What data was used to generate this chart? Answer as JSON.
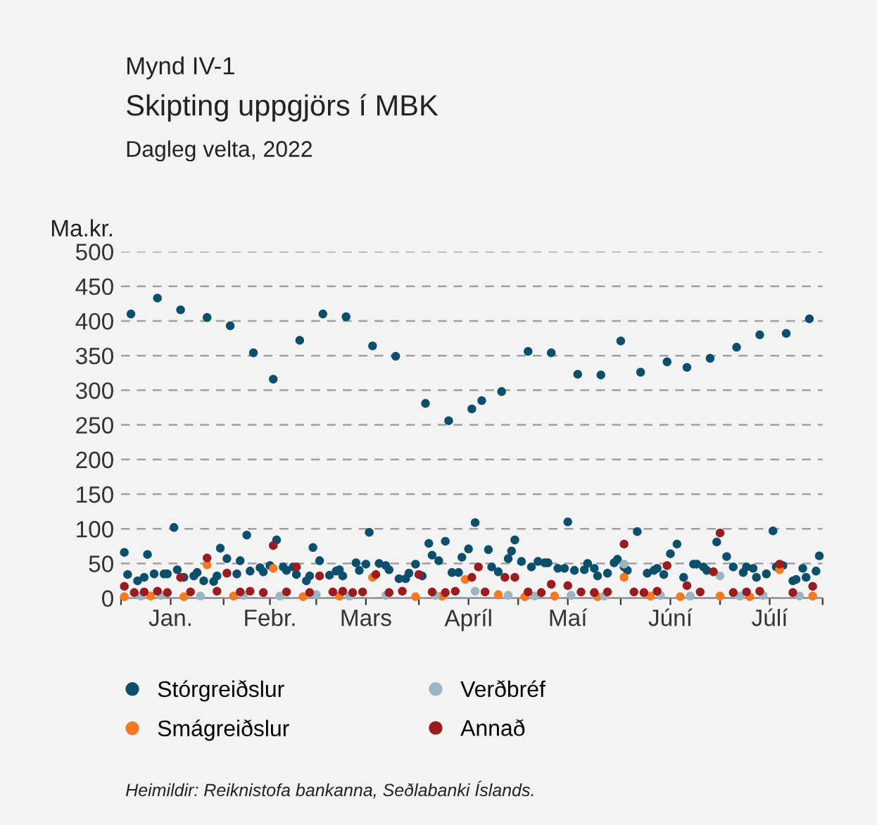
{
  "chart_data": {
    "type": "scatter",
    "title": "Skipting uppgjörs í MBK",
    "subtitle": "Dagleg velta, 2022",
    "ylabel": "Ma.kr.",
    "annotations": [
      "Mynd IV-1",
      "Heimildir: Reiknistofa bankanna, Seðlabanki Íslands."
    ],
    "xlim": [
      "2022-01-01",
      "2022-08-01"
    ],
    "xticks": [
      {
        "value": "2022-01-01",
        "label": null
      },
      {
        "value": "2022-01-16",
        "label": "Jan."
      },
      {
        "value": "2022-02-01",
        "label": null
      },
      {
        "value": "2022-02-15",
        "label": "Febr."
      },
      {
        "value": "2022-03-01",
        "label": null
      },
      {
        "value": "2022-03-16",
        "label": "Mars"
      },
      {
        "value": "2022-04-01",
        "label": null
      },
      {
        "value": "2022-04-16",
        "label": "Apríl"
      },
      {
        "value": "2022-05-01",
        "label": null
      },
      {
        "value": "2022-05-16",
        "label": "Maí"
      },
      {
        "value": "2022-06-01",
        "label": null
      },
      {
        "value": "2022-06-16",
        "label": "Júní"
      },
      {
        "value": "2022-07-01",
        "label": null
      },
      {
        "value": "2022-07-16",
        "label": "Júlí"
      },
      {
        "value": "2022-08-01",
        "label": null
      }
    ],
    "ylim": [
      0,
      500
    ],
    "yticks": [
      0,
      50,
      100,
      150,
      200,
      250,
      300,
      350,
      400,
      450,
      500
    ],
    "grid": "y",
    "legend": "bottom",
    "marker": "circle",
    "series": [
      {
        "name": "Stórgreiðslur",
        "color": "#0b4f6c",
        "x": [
          "2022-01-02",
          "2022-01-03",
          "2022-01-04",
          "2022-01-06",
          "2022-01-08",
          "2022-01-09",
          "2022-01-11",
          "2022-01-12",
          "2022-01-14",
          "2022-01-15",
          "2022-01-17",
          "2022-01-18",
          "2022-01-19",
          "2022-01-20",
          "2022-01-23",
          "2022-01-24",
          "2022-01-26",
          "2022-01-27",
          "2022-01-29",
          "2022-01-30",
          "2022-01-31",
          "2022-02-02",
          "2022-02-03",
          "2022-02-05",
          "2022-02-06",
          "2022-02-08",
          "2022-02-09",
          "2022-02-10",
          "2022-02-12",
          "2022-02-13",
          "2022-02-15",
          "2022-02-16",
          "2022-02-17",
          "2022-02-19",
          "2022-02-20",
          "2022-02-22",
          "2022-02-23",
          "2022-02-24",
          "2022-02-26",
          "2022-02-27",
          "2022-02-28",
          "2022-03-02",
          "2022-03-03",
          "2022-03-05",
          "2022-03-07",
          "2022-03-08",
          "2022-03-09",
          "2022-03-10",
          "2022-03-13",
          "2022-03-14",
          "2022-03-16",
          "2022-03-17",
          "2022-03-18",
          "2022-03-20",
          "2022-03-22",
          "2022-03-23",
          "2022-03-25",
          "2022-03-26",
          "2022-03-28",
          "2022-03-29",
          "2022-03-31",
          "2022-04-02",
          "2022-04-03",
          "2022-04-04",
          "2022-04-05",
          "2022-04-07",
          "2022-04-09",
          "2022-04-10",
          "2022-04-11",
          "2022-04-13",
          "2022-04-14",
          "2022-04-16",
          "2022-04-17",
          "2022-04-18",
          "2022-04-20",
          "2022-04-22",
          "2022-04-23",
          "2022-04-25",
          "2022-04-26",
          "2022-04-28",
          "2022-04-29",
          "2022-04-30",
          "2022-05-02",
          "2022-05-04",
          "2022-05-05",
          "2022-05-07",
          "2022-05-09",
          "2022-05-10",
          "2022-05-11",
          "2022-05-13",
          "2022-05-15",
          "2022-05-16",
          "2022-05-18",
          "2022-05-19",
          "2022-05-21",
          "2022-05-22",
          "2022-05-24",
          "2022-05-25",
          "2022-05-26",
          "2022-05-28",
          "2022-05-30",
          "2022-05-31",
          "2022-06-01",
          "2022-06-02",
          "2022-06-03",
          "2022-06-06",
          "2022-06-07",
          "2022-06-09",
          "2022-06-11",
          "2022-06-12",
          "2022-06-14",
          "2022-06-15",
          "2022-06-16",
          "2022-06-18",
          "2022-06-20",
          "2022-06-21",
          "2022-06-23",
          "2022-06-24",
          "2022-06-26",
          "2022-06-27",
          "2022-06-28",
          "2022-06-30",
          "2022-07-03",
          "2022-07-05",
          "2022-07-06",
          "2022-07-08",
          "2022-07-09",
          "2022-07-11",
          "2022-07-12",
          "2022-07-13",
          "2022-07-15",
          "2022-07-17",
          "2022-07-18",
          "2022-07-20",
          "2022-07-21",
          "2022-07-23",
          "2022-07-24",
          "2022-07-26",
          "2022-07-27",
          "2022-07-28",
          "2022-07-30",
          "2022-07-31"
        ],
        "values": [
          66,
          34,
          410,
          25,
          30,
          63,
          35,
          433,
          35,
          35,
          102,
          41,
          416,
          30,
          32,
          37,
          25,
          405,
          24,
          32,
          72,
          57,
          393,
          35,
          54,
          91,
          39,
          354,
          44,
          38,
          47,
          316,
          84,
          45,
          40,
          45,
          34,
          372,
          25,
          32,
          73,
          54,
          410,
          33,
          39,
          41,
          32,
          406,
          51,
          40,
          49,
          95,
          364,
          50,
          47,
          41,
          349,
          28,
          28,
          36,
          49,
          32,
          281,
          79,
          62,
          54,
          82,
          256,
          37,
          37,
          59,
          71,
          273,
          109,
          285,
          70,
          45,
          38,
          298,
          57,
          68,
          84,
          53,
          356,
          45,
          53,
          51,
          51,
          354,
          43,
          43,
          110,
          40,
          323,
          41,
          50,
          43,
          32,
          322,
          36,
          51,
          56,
          371,
          45,
          40,
          96,
          326,
          36,
          40,
          43,
          34,
          341,
          64,
          78,
          30,
          333,
          49,
          49,
          45,
          40,
          346,
          81,
          60,
          45,
          362,
          37,
          45,
          43,
          30,
          380,
          35,
          97,
          45,
          47,
          382,
          25,
          27,
          43,
          30,
          403,
          39,
          61
        ]
      },
      {
        "name": "Smágreiðslur",
        "color": "#f47920",
        "x": [
          "2022-01-02",
          "2022-01-10",
          "2022-01-20",
          "2022-01-27",
          "2022-02-04",
          "2022-02-16",
          "2022-02-25",
          "2022-03-08",
          "2022-03-18",
          "2022-03-31",
          "2022-04-08",
          "2022-04-15",
          "2022-04-25",
          "2022-05-03",
          "2022-05-12",
          "2022-05-25",
          "2022-06-02",
          "2022-06-10",
          "2022-06-19",
          "2022-07-01",
          "2022-07-10",
          "2022-07-19",
          "2022-07-29"
        ],
        "values": [
          2,
          3,
          2,
          48,
          3,
          43,
          2,
          3,
          30,
          2,
          3,
          27,
          5,
          2,
          3,
          2,
          30,
          3,
          2,
          3,
          2,
          41,
          3
        ]
      },
      {
        "name": "Verðbréf",
        "color": "#9db5c1",
        "x": [
          "2022-01-07",
          "2022-01-13",
          "2022-01-25",
          "2022-02-07",
          "2022-02-18",
          "2022-03-01",
          "2022-03-11",
          "2022-03-22",
          "2022-04-06",
          "2022-04-18",
          "2022-04-28",
          "2022-05-06",
          "2022-05-17",
          "2022-05-27",
          "2022-06-02",
          "2022-06-13",
          "2022-06-22",
          "2022-07-01",
          "2022-07-07",
          "2022-07-14",
          "2022-07-25"
        ],
        "values": [
          3,
          4,
          3,
          4,
          3,
          5,
          3,
          4,
          4,
          10,
          4,
          3,
          4,
          3,
          49,
          4,
          3,
          32,
          3,
          4,
          3
        ]
      },
      {
        "name": "Annað",
        "color": "#9b1b1e",
        "x": [
          "2022-01-02",
          "2022-01-05",
          "2022-01-08",
          "2022-01-12",
          "2022-01-15",
          "2022-01-19",
          "2022-01-22",
          "2022-01-27",
          "2022-01-30",
          "2022-02-02",
          "2022-02-06",
          "2022-02-09",
          "2022-02-13",
          "2022-02-16",
          "2022-02-20",
          "2022-02-23",
          "2022-02-27",
          "2022-03-02",
          "2022-03-06",
          "2022-03-09",
          "2022-03-12",
          "2022-03-15",
          "2022-03-19",
          "2022-03-23",
          "2022-03-27",
          "2022-04-01",
          "2022-04-05",
          "2022-04-09",
          "2022-04-12",
          "2022-04-17",
          "2022-04-19",
          "2022-04-21",
          "2022-04-27",
          "2022-04-30",
          "2022-05-04",
          "2022-05-08",
          "2022-05-11",
          "2022-05-16",
          "2022-05-20",
          "2022-05-24",
          "2022-05-28",
          "2022-06-02",
          "2022-06-05",
          "2022-06-08",
          "2022-06-12",
          "2022-06-15",
          "2022-06-21",
          "2022-06-25",
          "2022-06-29",
          "2022-07-01",
          "2022-07-05",
          "2022-07-09",
          "2022-07-13",
          "2022-07-19",
          "2022-07-23",
          "2022-07-29"
        ],
        "values": [
          17,
          8,
          9,
          10,
          8,
          30,
          9,
          58,
          10,
          36,
          9,
          10,
          8,
          76,
          9,
          45,
          8,
          32,
          9,
          10,
          8,
          9,
          34,
          8,
          10,
          34,
          9,
          8,
          10,
          30,
          45,
          9,
          30,
          30,
          9,
          8,
          20,
          18,
          9,
          8,
          9,
          78,
          9,
          8,
          10,
          47,
          18,
          9,
          38,
          94,
          8,
          9,
          10,
          49,
          8,
          17
        ]
      }
    ]
  }
}
